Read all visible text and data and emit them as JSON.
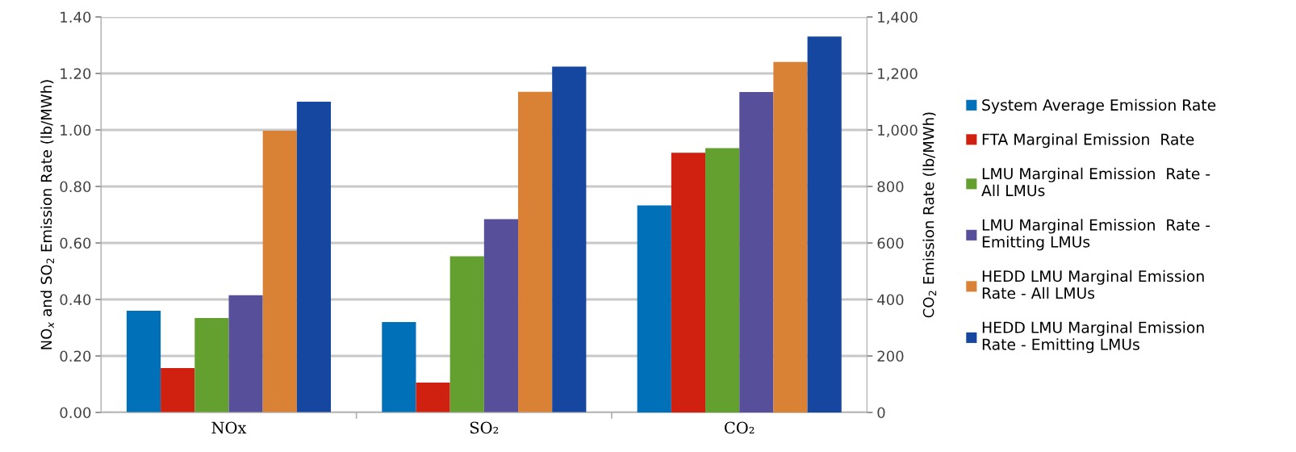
{
  "chart_data": {
    "type": "bar",
    "categories": [
      "NOx",
      "SO₂",
      "CO₂"
    ],
    "ylabel": "NO$_{x}$ and SO$_{2}$ Emission Rate (lb/MWh)",
    "y2label": "CO$_{2}$ Emission Rate (lb/MWh)",
    "ylim": [
      0,
      1.4
    ],
    "yticks": [
      {
        "value": 0,
        "label": "0.00"
      },
      {
        "value": 0.2,
        "label": "0.20"
      },
      {
        "value": 0.4,
        "label": "0.40"
      },
      {
        "value": 0.6,
        "label": "0.60"
      },
      {
        "value": 0.8,
        "label": "0.80"
      },
      {
        "value": 1.0,
        "label": "1.00"
      },
      {
        "value": 1.2,
        "label": "1.20"
      },
      {
        "value": 1.4,
        "label": "1.40"
      }
    ],
    "y2lim": [
      0,
      1400
    ],
    "y2ticks": [
      0,
      200,
      400,
      600,
      800,
      {
        "value": 1000,
        "label": "1,000"
      },
      {
        "value": 1200,
        "label": "1,200"
      },
      {
        "value": 1400,
        "label": "1,400"
      }
    ],
    "grid": "y",
    "legend": "right",
    "series": [
      {
        "name": "System Average Emission Rate",
        "color": "#0070b8",
        "values": [
          0.36,
          0.32,
          null
        ]
      },
      {
        "name": "FTA Marginal Emission  Rate",
        "color": "#d02010",
        "values": [
          0.157,
          0.106,
          null
        ]
      },
      {
        "name": "LMU Marginal Emission  Rate -\nAll LMUs",
        "color": "#64a030",
        "values": [
          0.334,
          0.553,
          null
        ]
      },
      {
        "name": "LMU Marginal Emission  Rate -\nEmitting LMUs",
        "color": "#584f9a",
        "values": [
          0.415,
          0.684,
          null
        ]
      },
      {
        "name": "HEDD LMU Marginal Emission\nRate - All LMUs",
        "color": "#d98236",
        "values": [
          0.997,
          1.135,
          null
        ]
      },
      {
        "name": "HEDD LMU Marginal Emission\nRate - Emitting LMUs",
        "color": "#1546a0",
        "values": [
          1.1,
          1.224,
          null
        ]
      },
      {
        "color": "#0070b8",
        "axis": "y2",
        "values": [
          null,
          null,
          733
        ]
      },
      {
        "color": "#d02010",
        "axis": "y2",
        "values": [
          null,
          null,
          919
        ]
      },
      {
        "color": "#64a030",
        "axis": "y2",
        "values": [
          null,
          null,
          936
        ]
      },
      {
        "color": "#584f9a",
        "axis": "y2",
        "values": [
          null,
          null,
          1134
        ]
      },
      {
        "color": "#d98236",
        "axis": "y2",
        "values": [
          null,
          null,
          1241
        ]
      },
      {
        "color": "#1546a0",
        "axis": "y2",
        "values": [
          null,
          null,
          1331
        ]
      }
    ]
  }
}
